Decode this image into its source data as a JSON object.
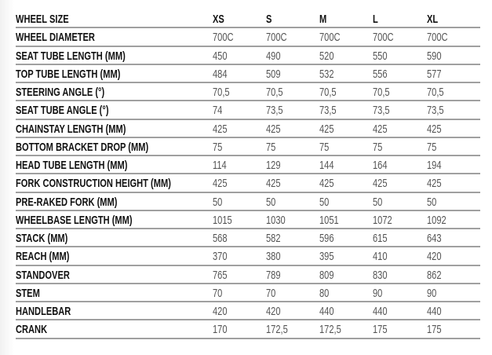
{
  "table": {
    "header": {
      "label": "WHEEL SIZE",
      "sizes": [
        "XS",
        "S",
        "M",
        "L",
        "XL"
      ]
    },
    "rows": [
      {
        "label": "WHEEL DIAMETER",
        "values": [
          "700C",
          "700C",
          "700C",
          "700C",
          "700C"
        ]
      },
      {
        "label": "SEAT TUBE LENGTH (MM)",
        "values": [
          "450",
          "490",
          "520",
          "550",
          "590"
        ]
      },
      {
        "label": "TOP TUBE LENGTH (MM)",
        "values": [
          "484",
          "509",
          "532",
          "556",
          "577"
        ]
      },
      {
        "label": "STEERING ANGLE (°)",
        "values": [
          "70,5",
          "70,5",
          "70,5",
          "70,5",
          "70,5"
        ]
      },
      {
        "label": "SEAT TUBE ANGLE (°)",
        "values": [
          "74",
          "73,5",
          "73,5",
          "73,5",
          "73,5"
        ]
      },
      {
        "label": "CHAINSTAY LENGTH (MM)",
        "values": [
          "425",
          "425",
          "425",
          "425",
          "425"
        ]
      },
      {
        "label": "BOTTOM BRACKET DROP (MM)",
        "values": [
          "75",
          "75",
          "75",
          "75",
          "75"
        ]
      },
      {
        "label": "HEAD TUBE LENGTH (MM)",
        "values": [
          "114",
          "129",
          "144",
          "164",
          "194"
        ]
      },
      {
        "label": "FORK CONSTRUCTION HEIGHT (MM)",
        "values": [
          "425",
          "425",
          "425",
          "425",
          "425"
        ]
      },
      {
        "label": "PRE-RAKED FORK (MM)",
        "values": [
          "50",
          "50",
          "50",
          "50",
          "50"
        ]
      },
      {
        "label": "WHEELBASE LENGTH (MM)",
        "values": [
          "1015",
          "1030",
          "1051",
          "1072",
          "1092"
        ]
      },
      {
        "label": "STACK (MM)",
        "values": [
          "568",
          "582",
          "596",
          "615",
          "643"
        ]
      },
      {
        "label": "REACH (MM)",
        "values": [
          "370",
          "380",
          "395",
          "410",
          "420"
        ]
      },
      {
        "label": "STANDOVER",
        "values": [
          "765",
          "789",
          "809",
          "830",
          "862"
        ]
      },
      {
        "label": "STEM",
        "values": [
          "70",
          "70",
          "80",
          "90",
          "90"
        ]
      },
      {
        "label": "HANDLEBAR",
        "values": [
          "420",
          "420",
          "440",
          "440",
          "440"
        ]
      },
      {
        "label": "CRANK",
        "values": [
          "170",
          "172,5",
          "172,5",
          "175",
          "175"
        ]
      }
    ]
  }
}
